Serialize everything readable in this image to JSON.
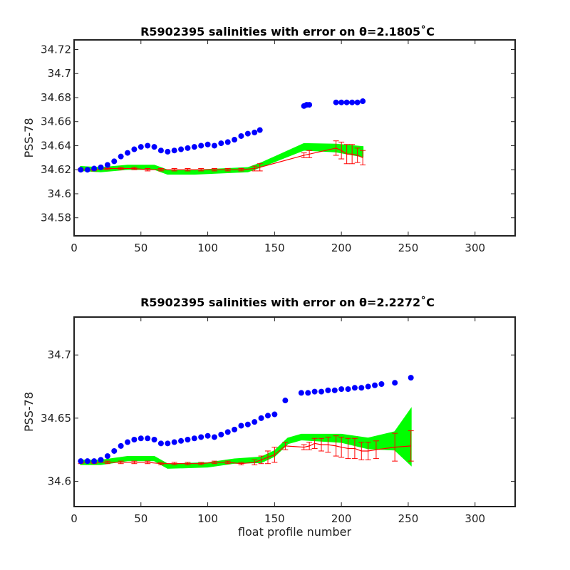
{
  "colors": {
    "float": "#0000ff",
    "mapped": "#00ff00",
    "error": "#ff0000",
    "axes": "#222222"
  },
  "chart_data": [
    {
      "type": "scatter",
      "title": "R5902395 salinities with error on θ=2.1805˚C",
      "xlabel": "",
      "ylabel": "PSS-78",
      "xlim": [
        0,
        330
      ],
      "ylim": [
        34.565,
        34.728
      ],
      "xticks": [
        0,
        50,
        100,
        150,
        200,
        250,
        300
      ],
      "yticks": [
        34.58,
        34.6,
        34.62,
        34.64,
        34.66,
        34.68,
        34.7,
        34.72
      ],
      "xtick_labels": [
        "0",
        "50",
        "100",
        "150",
        "200",
        "250",
        "300"
      ],
      "ytick_labels": [
        "34.58",
        "34.6",
        "34.62",
        "34.64",
        "34.66",
        "34.68",
        "34.7",
        "34.72"
      ],
      "grid": false,
      "float_salinity": {
        "x": [
          5,
          10,
          15,
          20,
          25,
          30,
          35,
          40,
          45,
          50,
          55,
          60,
          65,
          70,
          75,
          80,
          85,
          90,
          95,
          100,
          105,
          110,
          115,
          120,
          125,
          130,
          135,
          139,
          172,
          174,
          176,
          196,
          200,
          204,
          208,
          212,
          216
        ],
        "y": [
          34.62,
          34.62,
          34.621,
          34.622,
          34.624,
          34.627,
          34.631,
          34.634,
          34.637,
          34.639,
          34.64,
          34.639,
          34.636,
          34.635,
          34.636,
          34.637,
          34.638,
          34.639,
          34.64,
          34.641,
          34.64,
          34.642,
          34.643,
          34.645,
          34.648,
          34.65,
          34.651,
          34.653,
          34.673,
          34.674,
          34.674,
          34.676,
          34.676,
          34.676,
          34.676,
          34.676,
          34.677
        ]
      },
      "mapped_salinity": {
        "x": [
          5,
          20,
          40,
          60,
          70,
          90,
          110,
          130,
          140,
          172,
          196,
          216
        ],
        "y": [
          34.621,
          34.62,
          34.622,
          34.622,
          34.618,
          34.618,
          34.619,
          34.62,
          34.624,
          34.639,
          34.638,
          34.635
        ],
        "err": [
          0.0015,
          0.0015,
          0.0015,
          0.0015,
          0.0015,
          0.0015,
          0.0015,
          0.0015,
          0.0015,
          0.0025,
          0.003,
          0.004
        ]
      },
      "error_bars": {
        "x": [
          5,
          15,
          25,
          35,
          45,
          55,
          65,
          75,
          85,
          95,
          105,
          115,
          125,
          135,
          139,
          172,
          176,
          196,
          200,
          204,
          208,
          212,
          216
        ],
        "y": [
          34.62,
          34.62,
          34.621,
          34.621,
          34.621,
          34.62,
          34.62,
          34.62,
          34.62,
          34.62,
          34.62,
          34.62,
          34.62,
          34.621,
          34.622,
          34.632,
          34.633,
          34.638,
          34.636,
          34.633,
          34.633,
          34.632,
          34.63
        ],
        "err": [
          0.001,
          0.001,
          0.001,
          0.001,
          0.001,
          0.001,
          0.001,
          0.001,
          0.001,
          0.001,
          0.001,
          0.001,
          0.001,
          0.002,
          0.003,
          0.002,
          0.003,
          0.006,
          0.007,
          0.008,
          0.008,
          0.006,
          0.006
        ]
      }
    },
    {
      "type": "scatter",
      "title": "R5902395 salinities with error on θ=2.2272˚C",
      "xlabel": "float profile number",
      "ylabel": "PSS-78",
      "xlim": [
        0,
        330
      ],
      "ylim": [
        34.58,
        34.73
      ],
      "xticks": [
        0,
        50,
        100,
        150,
        200,
        250,
        300
      ],
      "yticks": [
        34.6,
        34.65,
        34.7
      ],
      "xtick_labels": [
        "0",
        "50",
        "100",
        "150",
        "200",
        "250",
        "300"
      ],
      "ytick_labels": [
        "34.6",
        "34.65",
        "34.7"
      ],
      "grid": false,
      "float_salinity": {
        "x": [
          5,
          10,
          15,
          20,
          25,
          30,
          35,
          40,
          45,
          50,
          55,
          60,
          65,
          70,
          75,
          80,
          85,
          90,
          95,
          100,
          105,
          110,
          115,
          120,
          125,
          130,
          135,
          140,
          145,
          150,
          158,
          170,
          175,
          180,
          185,
          190,
          195,
          200,
          205,
          210,
          215,
          220,
          225,
          230,
          240,
          252
        ],
        "y": [
          34.616,
          34.616,
          34.616,
          34.617,
          34.62,
          34.624,
          34.628,
          34.631,
          34.633,
          34.634,
          34.634,
          34.633,
          34.63,
          34.63,
          34.631,
          34.632,
          34.633,
          34.634,
          34.635,
          34.636,
          34.635,
          34.637,
          34.639,
          34.641,
          34.644,
          34.645,
          34.647,
          34.65,
          34.652,
          34.653,
          34.664,
          34.67,
          34.67,
          34.671,
          34.671,
          34.672,
          34.672,
          34.673,
          34.673,
          34.674,
          34.674,
          34.675,
          34.676,
          34.677,
          34.678,
          34.682
        ]
      },
      "mapped_salinity": {
        "x": [
          5,
          20,
          40,
          60,
          70,
          100,
          120,
          140,
          150,
          160,
          170,
          200,
          220,
          240,
          252
        ],
        "y": [
          34.615,
          34.615,
          34.618,
          34.618,
          34.612,
          34.613,
          34.616,
          34.617,
          34.622,
          34.632,
          34.635,
          34.634,
          34.63,
          34.632,
          34.635
        ],
        "err": [
          0.0015,
          0.0015,
          0.0015,
          0.0015,
          0.0015,
          0.0015,
          0.0015,
          0.002,
          0.002,
          0.002,
          0.002,
          0.003,
          0.004,
          0.007,
          0.022
        ]
      },
      "error_bars": {
        "x": [
          5,
          15,
          25,
          35,
          45,
          55,
          65,
          75,
          85,
          95,
          105,
          115,
          125,
          135,
          140,
          145,
          150,
          158,
          172,
          176,
          180,
          185,
          190,
          196,
          200,
          205,
          210,
          215,
          220,
          226,
          240,
          252
        ],
        "y": [
          34.615,
          34.615,
          34.615,
          34.615,
          34.615,
          34.615,
          34.614,
          34.614,
          34.614,
          34.614,
          34.615,
          34.615,
          34.614,
          34.615,
          34.617,
          34.619,
          34.621,
          34.628,
          34.627,
          34.628,
          34.63,
          34.629,
          34.629,
          34.628,
          34.627,
          34.626,
          34.626,
          34.624,
          34.624,
          34.625,
          34.627,
          34.628
        ],
        "err": [
          0.001,
          0.001,
          0.001,
          0.001,
          0.001,
          0.001,
          0.001,
          0.001,
          0.001,
          0.001,
          0.001,
          0.001,
          0.001,
          0.002,
          0.003,
          0.005,
          0.006,
          0.003,
          0.002,
          0.003,
          0.004,
          0.005,
          0.006,
          0.008,
          0.008,
          0.008,
          0.008,
          0.007,
          0.007,
          0.007,
          0.011,
          0.012
        ]
      }
    }
  ]
}
